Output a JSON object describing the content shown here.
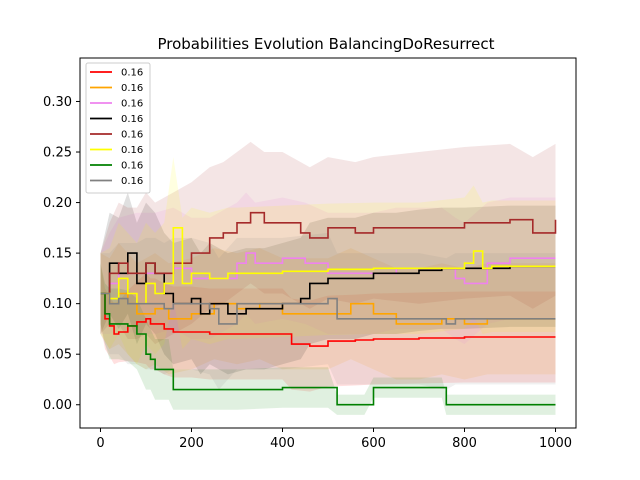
{
  "chart_data": {
    "type": "line",
    "title": "Probabilities Evolution BalancingDoResurrect",
    "xlabel": "",
    "ylabel": "",
    "xlim": [
      -45,
      1045
    ],
    "ylim": [
      -0.023,
      0.343
    ],
    "xticks": [
      0,
      200,
      400,
      600,
      800,
      1000
    ],
    "xtick_labels": [
      "0",
      "200",
      "400",
      "600",
      "800",
      "1000"
    ],
    "yticks": [
      0.0,
      0.05,
      0.1,
      0.15,
      0.2,
      0.25,
      0.3
    ],
    "ytick_labels": [
      "0.00",
      "0.05",
      "0.10",
      "0.15",
      "0.20",
      "0.25",
      "0.30"
    ],
    "grid": false,
    "legend_position": "top-left",
    "series": [
      {
        "name": "0.16",
        "color": "#ff0000",
        "x": [
          0,
          10,
          20,
          30,
          40,
          60,
          80,
          100,
          110,
          120,
          140,
          160,
          200,
          240,
          300,
          400,
          420,
          460,
          500,
          560,
          600,
          700,
          800,
          900,
          1000
        ],
        "y": [
          0.11,
          0.085,
          0.078,
          0.07,
          0.072,
          0.078,
          0.082,
          0.085,
          0.08,
          0.08,
          0.075,
          0.072,
          0.072,
          0.07,
          0.07,
          0.07,
          0.06,
          0.058,
          0.063,
          0.064,
          0.065,
          0.066,
          0.067,
          0.067,
          0.067
        ],
        "band": [
          0.03,
          0.03,
          0.03,
          0.03,
          0.03,
          0.035,
          0.04,
          0.045,
          0.045,
          0.045,
          0.045,
          0.045,
          0.045,
          0.045,
          0.045,
          0.045,
          0.045,
          0.045,
          0.045,
          0.045,
          0.045,
          0.045,
          0.045,
          0.045,
          0.045
        ]
      },
      {
        "name": "0.16",
        "color": "#ffa500",
        "x": [
          0,
          20,
          40,
          60,
          80,
          100,
          120,
          150,
          200,
          250,
          300,
          350,
          400,
          450,
          500,
          550,
          600,
          650,
          700,
          750,
          800,
          850,
          900,
          950,
          1000
        ],
        "y": [
          0.11,
          0.1,
          0.11,
          0.1,
          0.09,
          0.09,
          0.095,
          0.085,
          0.09,
          0.1,
          0.095,
          0.1,
          0.09,
          0.09,
          0.09,
          0.1,
          0.09,
          0.08,
          0.08,
          0.085,
          0.08,
          0.085,
          0.085,
          0.085,
          0.085
        ],
        "band": [
          0.04,
          0.045,
          0.05,
          0.05,
          0.05,
          0.055,
          0.055,
          0.055,
          0.055,
          0.055,
          0.055,
          0.055,
          0.055,
          0.055,
          0.055,
          0.055,
          0.055,
          0.055,
          0.055,
          0.055,
          0.055,
          0.055,
          0.055,
          0.055,
          0.055
        ]
      },
      {
        "name": "0.16",
        "color": "#ee82ee",
        "x": [
          0,
          20,
          40,
          80,
          120,
          160,
          200,
          240,
          300,
          320,
          340,
          400,
          450,
          500,
          550,
          600,
          650,
          700,
          750,
          780,
          800,
          850,
          900,
          950,
          1000
        ],
        "y": [
          0.11,
          0.12,
          0.13,
          0.13,
          0.13,
          0.135,
          0.125,
          0.125,
          0.14,
          0.15,
          0.14,
          0.145,
          0.14,
          0.13,
          0.13,
          0.13,
          0.135,
          0.135,
          0.135,
          0.125,
          0.12,
          0.14,
          0.145,
          0.145,
          0.145
        ],
        "band": [
          0.04,
          0.05,
          0.055,
          0.06,
          0.06,
          0.06,
          0.06,
          0.06,
          0.06,
          0.06,
          0.06,
          0.06,
          0.06,
          0.06,
          0.06,
          0.06,
          0.06,
          0.06,
          0.06,
          0.06,
          0.06,
          0.06,
          0.06,
          0.06,
          0.06
        ]
      },
      {
        "name": "0.16",
        "color": "#000000",
        "x": [
          0,
          20,
          40,
          60,
          80,
          100,
          120,
          140,
          160,
          200,
          220,
          240,
          280,
          320,
          360,
          400,
          440,
          460,
          500,
          560,
          600,
          650,
          700,
          750,
          800,
          900,
          1000
        ],
        "y": [
          0.11,
          0.14,
          0.13,
          0.15,
          0.12,
          0.14,
          0.13,
          0.11,
          0.1,
          0.105,
          0.09,
          0.1,
          0.09,
          0.095,
          0.095,
          0.1,
          0.105,
          0.12,
          0.125,
          0.125,
          0.13,
          0.13,
          0.133,
          0.135,
          0.135,
          0.137,
          0.137
        ],
        "band": [
          0.04,
          0.05,
          0.055,
          0.06,
          0.06,
          0.06,
          0.06,
          0.06,
          0.06,
          0.06,
          0.06,
          0.06,
          0.06,
          0.06,
          0.06,
          0.06,
          0.06,
          0.06,
          0.06,
          0.06,
          0.06,
          0.06,
          0.06,
          0.06,
          0.06,
          0.06,
          0.06
        ]
      },
      {
        "name": "0.16",
        "color": "#a52a2a",
        "x": [
          0,
          20,
          40,
          60,
          80,
          100,
          120,
          160,
          200,
          240,
          270,
          300,
          330,
          360,
          400,
          440,
          460,
          500,
          560,
          600,
          700,
          800,
          900,
          950,
          1000
        ],
        "y": [
          0.11,
          0.13,
          0.14,
          0.13,
          0.13,
          0.14,
          0.13,
          0.14,
          0.15,
          0.165,
          0.17,
          0.18,
          0.19,
          0.18,
          0.18,
          0.17,
          0.165,
          0.175,
          0.17,
          0.175,
          0.175,
          0.18,
          0.183,
          0.17,
          0.183
        ],
        "band": [
          0.04,
          0.05,
          0.06,
          0.065,
          0.065,
          0.07,
          0.07,
          0.07,
          0.07,
          0.07,
          0.07,
          0.07,
          0.07,
          0.07,
          0.07,
          0.07,
          0.07,
          0.07,
          0.07,
          0.07,
          0.075,
          0.075,
          0.075,
          0.075,
          0.075
        ]
      },
      {
        "name": "0.16",
        "color": "#ffff00",
        "x": [
          0,
          20,
          40,
          60,
          80,
          100,
          120,
          140,
          160,
          180,
          200,
          240,
          280,
          300,
          400,
          500,
          600,
          700,
          800,
          820,
          840,
          860,
          900,
          1000
        ],
        "y": [
          0.11,
          0.105,
          0.125,
          0.11,
          0.1,
          0.12,
          0.11,
          0.12,
          0.175,
          0.12,
          0.13,
          0.125,
          0.13,
          0.13,
          0.132,
          0.134,
          0.135,
          0.135,
          0.14,
          0.152,
          0.135,
          0.137,
          0.137,
          0.137
        ],
        "band": [
          0.04,
          0.05,
          0.055,
          0.06,
          0.06,
          0.06,
          0.06,
          0.06,
          0.07,
          0.065,
          0.065,
          0.065,
          0.065,
          0.065,
          0.065,
          0.065,
          0.065,
          0.065,
          0.065,
          0.065,
          0.065,
          0.065,
          0.065,
          0.065
        ]
      },
      {
        "name": "0.16",
        "color": "#008000",
        "x": [
          0,
          10,
          20,
          40,
          60,
          80,
          100,
          110,
          120,
          150,
          160,
          200,
          300,
          400,
          500,
          520,
          580,
          600,
          700,
          750,
          760,
          800,
          900,
          1000
        ],
        "y": [
          0.11,
          0.09,
          0.08,
          0.08,
          0.078,
          0.07,
          0.05,
          0.045,
          0.035,
          0.035,
          0.015,
          0.015,
          0.015,
          0.017,
          0.017,
          0.0,
          0.0,
          0.017,
          0.017,
          0.017,
          0.0,
          0.0,
          0.0,
          0.0
        ],
        "band": [
          0.03,
          0.03,
          0.035,
          0.035,
          0.035,
          0.035,
          0.035,
          0.03,
          0.03,
          0.03,
          0.02,
          0.02,
          0.02,
          0.02,
          0.02,
          0.01,
          0.01,
          0.01,
          0.01,
          0.01,
          0.01,
          0.01,
          0.01,
          0.01
        ]
      },
      {
        "name": "0.16",
        "color": "#808080",
        "x": [
          0,
          20,
          40,
          60,
          80,
          100,
          120,
          140,
          160,
          200,
          240,
          260,
          300,
          400,
          500,
          520,
          600,
          700,
          760,
          780,
          800,
          900,
          1000
        ],
        "y": [
          0.11,
          0.1,
          0.105,
          0.1,
          0.1,
          0.1,
          0.1,
          0.095,
          0.1,
          0.1,
          0.095,
          0.08,
          0.1,
          0.1,
          0.105,
          0.085,
          0.085,
          0.085,
          0.08,
          0.085,
          0.085,
          0.085,
          0.085
        ],
        "band": [
          0.04,
          0.05,
          0.055,
          0.06,
          0.06,
          0.065,
          0.065,
          0.065,
          0.065,
          0.065,
          0.065,
          0.065,
          0.065,
          0.065,
          0.065,
          0.065,
          0.065,
          0.065,
          0.065,
          0.065,
          0.065,
          0.065,
          0.065
        ]
      }
    ]
  }
}
